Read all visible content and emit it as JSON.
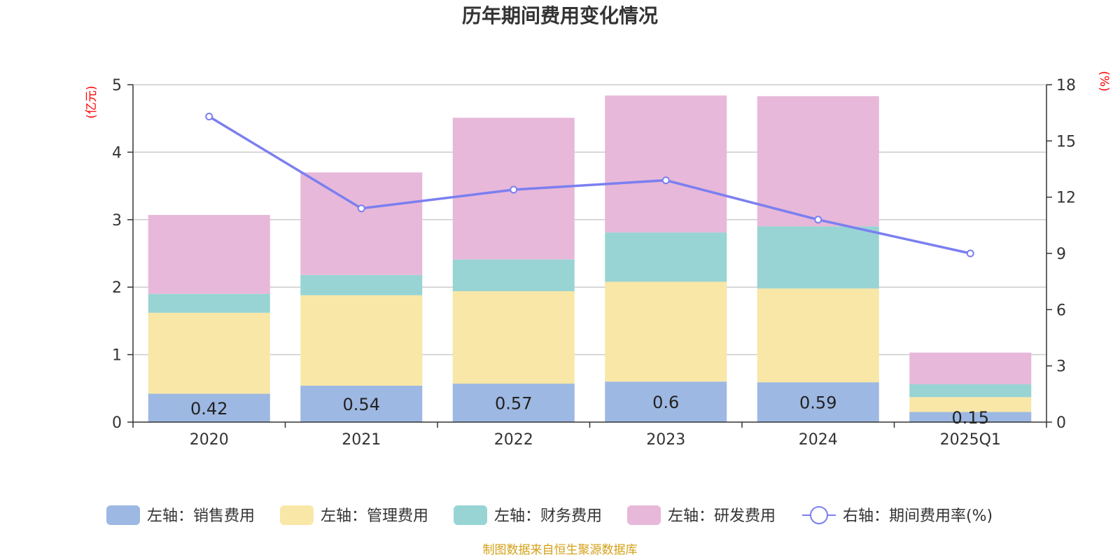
{
  "chart_data": {
    "type": "bar",
    "title": "历年期间费用变化情况",
    "y_left_unit": "(亿元)",
    "y_right_unit": "(%)",
    "categories": [
      "2020",
      "2021",
      "2022",
      "2023",
      "2024",
      "2025Q1"
    ],
    "y_left": {
      "min": 0,
      "max": 5,
      "ticks": [
        "0",
        "1",
        "2",
        "3",
        "4",
        "5"
      ]
    },
    "y_right": {
      "min": 0,
      "max": 18,
      "ticks": [
        "0",
        "3",
        "6",
        "9",
        "12",
        "15",
        "18"
      ]
    },
    "grid": true,
    "stacked": true,
    "series": [
      {
        "name": "左轴：销售费用",
        "axis": "left",
        "type": "bar",
        "color": "#9db8e2",
        "values": [
          0.42,
          0.54,
          0.57,
          0.6,
          0.59,
          0.15
        ],
        "labels": [
          "0.42",
          "0.54",
          "0.57",
          "0.6",
          "0.59",
          "0.15"
        ]
      },
      {
        "name": "左轴：管理费用",
        "axis": "left",
        "type": "bar",
        "color": "#f8e7a7",
        "values": [
          1.2,
          1.34,
          1.37,
          1.48,
          1.39,
          0.22
        ]
      },
      {
        "name": "左轴：财务费用",
        "axis": "left",
        "type": "bar",
        "color": "#98d4d4",
        "values": [
          0.28,
          0.3,
          0.47,
          0.73,
          0.92,
          0.19
        ]
      },
      {
        "name": "左轴：研发费用",
        "axis": "left",
        "type": "bar",
        "color": "#e7b8d9",
        "values": [
          1.17,
          1.52,
          2.1,
          2.03,
          1.93,
          0.47
        ]
      },
      {
        "name": "右轴：期间费用率(%)",
        "axis": "right",
        "type": "line",
        "color": "#7b7ff0",
        "values": [
          16.3,
          11.4,
          12.4,
          12.9,
          10.8,
          9.0
        ]
      }
    ],
    "legend_position": "bottom",
    "source": "制图数据来自恒生聚源数据库"
  }
}
